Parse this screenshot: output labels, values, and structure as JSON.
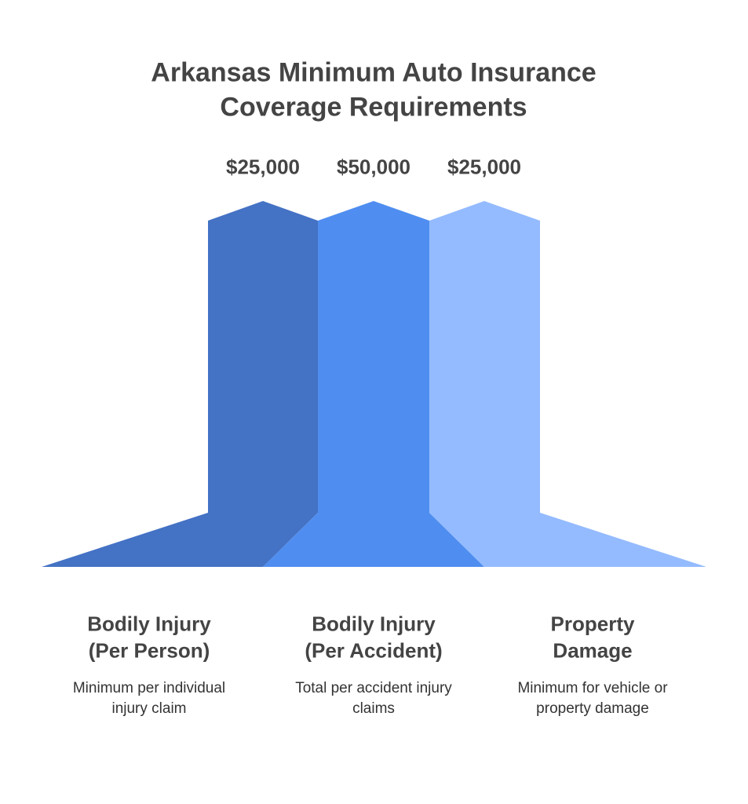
{
  "title": [
    "Arkansas Minimum Auto Insurance",
    "Coverage Requirements"
  ],
  "items": [
    {
      "amount": "$25,000",
      "label": [
        "Bodily Injury",
        "(Per Person)"
      ],
      "description": [
        "Minimum per individual",
        "injury claim"
      ]
    },
    {
      "amount": "$50,000",
      "label": [
        "Bodily Injury",
        "(Per Accident)"
      ],
      "description": [
        "Total per accident injury",
        "claims"
      ]
    },
    {
      "amount": "$25,000",
      "label": [
        "Property",
        "Damage"
      ],
      "description": [
        "Minimum for vehicle or",
        "property damage"
      ]
    }
  ]
}
